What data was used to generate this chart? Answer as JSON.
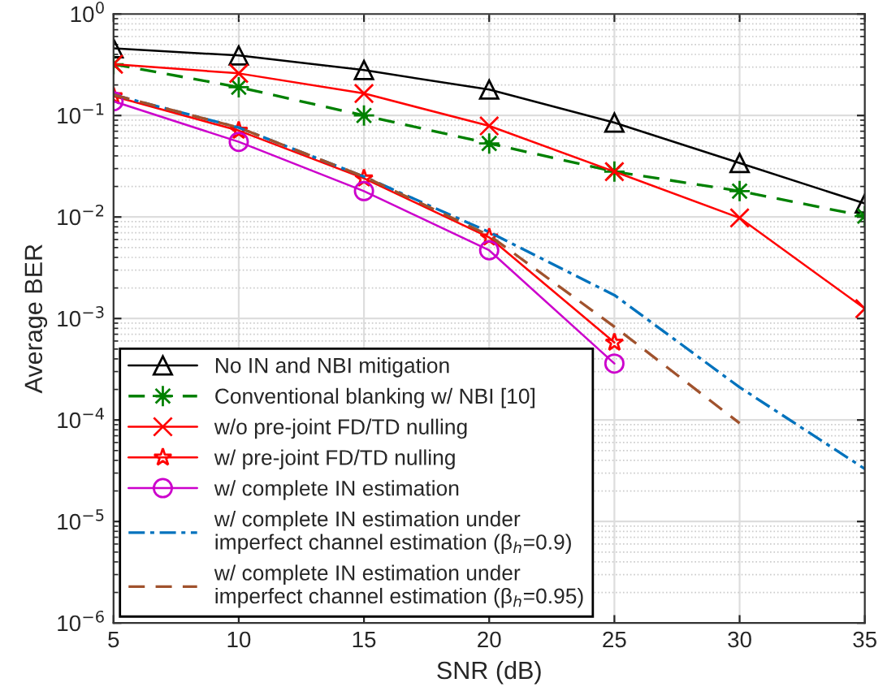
{
  "chart_data": {
    "type": "line",
    "xlabel": "SNR (dB)",
    "ylabel": "Average BER",
    "x": [
      5,
      10,
      15,
      20,
      25,
      30,
      35
    ],
    "series": [
      {
        "name": "No IN and NBI mitigation",
        "color": "#000000",
        "marker": "triangle",
        "line_style": "solid",
        "values": [
          0.46,
          0.39,
          0.28,
          0.18,
          0.085,
          0.034,
          0.0136
        ]
      },
      {
        "name": "Conventional blanking w/ NBI [10]",
        "color": "#008000",
        "marker": "asterisk",
        "line_style": "dashed",
        "values": [
          0.32,
          0.19,
          0.1,
          0.053,
          0.028,
          0.018,
          0.0102
        ]
      },
      {
        "name": "w/o pre-joint FD/TD nulling",
        "color": "#ff0000",
        "marker": "cross",
        "line_style": "solid",
        "values": [
          0.32,
          0.26,
          0.165,
          0.079,
          0.028,
          0.0098,
          0.00125
        ]
      },
      {
        "name": "w/ pre-joint FD/TD nulling",
        "color": "#ff0000",
        "marker": "star",
        "line_style": "solid",
        "values": [
          0.155,
          0.071,
          0.024,
          0.0063,
          0.00058,
          null,
          null
        ]
      },
      {
        "name": "w/ complete IN estimation",
        "color": "#cc00cc",
        "marker": "circle",
        "line_style": "solid",
        "values": [
          0.138,
          0.055,
          0.018,
          0.0047,
          0.00036,
          null,
          null
        ]
      },
      {
        "name": "w/ complete IN estimation under\nimperfect channel estimation (β$_{h}$=0.9)",
        "color": "#0072bd",
        "marker": "none",
        "line_style": "dashdot",
        "values": [
          0.16,
          0.076,
          0.025,
          0.0071,
          0.0017,
          0.00021,
          3.3e-05
        ]
      },
      {
        "name": "w/ complete IN estimation under\nimperfect channel estimation (β$_{h}$=0.95)",
        "color": "#a0522d",
        "marker": "none",
        "line_style": "dashed",
        "values": [
          0.16,
          0.076,
          0.025,
          0.0066,
          0.00083,
          9.3e-05,
          null
        ]
      }
    ],
    "log": "y",
    "xlim": [
      5,
      35
    ],
    "xticks": [
      5,
      10,
      15,
      20,
      25,
      30,
      35
    ],
    "ylim": [
      1e-06,
      1
    ],
    "yticks": [
      {
        "value": 1e-06,
        "label": "10$^{−6}$"
      },
      {
        "value": 1e-05,
        "label": "10$^{−5}$"
      },
      {
        "value": 0.0001,
        "label": "10$^{−4}$"
      },
      {
        "value": 0.001,
        "label": "10$^{−3}$"
      },
      {
        "value": 0.01,
        "label": "10$^{−2}$"
      },
      {
        "value": 0.1,
        "label": "10$^{−1}$"
      },
      {
        "value": 1,
        "label": "10$^{0}$"
      }
    ],
    "grid": true,
    "legend": "bottom left"
  }
}
